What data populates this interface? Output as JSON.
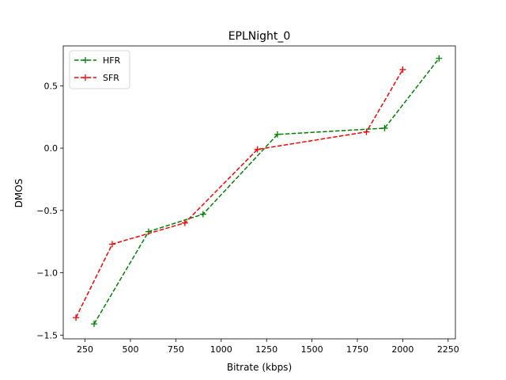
{
  "chart_data": {
    "type": "line",
    "title": "EPLNight_0",
    "xlabel": "Bitrate (kbps)",
    "ylabel": "DMOS",
    "xlim": [
      130,
      2290
    ],
    "ylim": [
      -1.53,
      0.82
    ],
    "x_ticks": [
      250,
      500,
      750,
      1000,
      1250,
      1500,
      1750,
      2000,
      2250
    ],
    "x_tick_labels": [
      "250",
      "500",
      "750",
      "1000",
      "1250",
      "1500",
      "1750",
      "2000",
      "2250"
    ],
    "y_ticks": [
      -1.5,
      -1.0,
      -0.5,
      0.0,
      0.5
    ],
    "y_tick_labels": [
      "−1.5",
      "−1.0",
      "−0.5",
      "0.0",
      "0.5"
    ],
    "grid": false,
    "legend_position": "top-left",
    "series": [
      {
        "name": "HFR",
        "color": "#008000",
        "linestyle": "dashed",
        "marker": "plus",
        "x": [
          300,
          600,
          900,
          1310,
          1900,
          2200
        ],
        "y": [
          -1.41,
          -0.67,
          -0.53,
          0.11,
          0.16,
          0.72
        ]
      },
      {
        "name": "SFR",
        "color": "#ff0000",
        "linestyle": "dashed",
        "marker": "plus",
        "x": [
          200,
          400,
          800,
          1200,
          1800,
          2000
        ],
        "y": [
          -1.36,
          -0.77,
          -0.6,
          -0.01,
          0.13,
          0.63
        ]
      }
    ]
  }
}
